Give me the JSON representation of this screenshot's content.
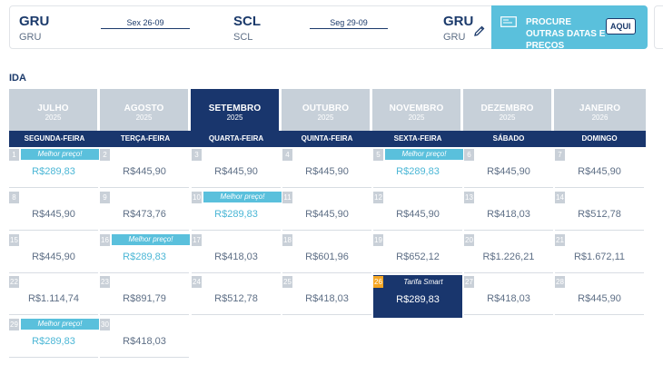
{
  "route": {
    "origin": {
      "code": "GRU",
      "name": "GRU"
    },
    "destination": {
      "code": "SCL",
      "name": "SCL"
    },
    "return_to": {
      "code": "GRU",
      "name": "GRU"
    },
    "depart_date": "Sex 26-09",
    "return_date": "Seg 29-09"
  },
  "promo": {
    "text": "PROCURE OUTRAS DATAS E PREÇOS",
    "button": "AQUI"
  },
  "section_label": "IDA",
  "months": [
    {
      "name": "JULHO",
      "year": "2025",
      "active": false
    },
    {
      "name": "AGOSTO",
      "year": "2025",
      "active": false
    },
    {
      "name": "SETEMBRO",
      "year": "2025",
      "active": true
    },
    {
      "name": "OUTUBRO",
      "year": "2025",
      "active": false
    },
    {
      "name": "NOVEMBRO",
      "year": "2025",
      "active": false
    },
    {
      "name": "DEZEMBRO",
      "year": "2025",
      "active": false
    },
    {
      "name": "JANEIRO",
      "year": "2026",
      "active": false
    }
  ],
  "weekdays": [
    "SEGUNDA-FEIRA",
    "TERÇA-FEIRA",
    "QUARTA-FEIRA",
    "QUINTA-FEIRA",
    "SEXTA-FEIRA",
    "SÁBADO",
    "DOMINGO"
  ],
  "labels": {
    "best": "Melhor preço!",
    "smart": "Tarifa Smart"
  },
  "days": [
    {
      "day": "1",
      "price": "R$289,83",
      "best": true
    },
    {
      "day": "2",
      "price": "R$445,90"
    },
    {
      "day": "3",
      "price": "R$445,90"
    },
    {
      "day": "4",
      "price": "R$445,90"
    },
    {
      "day": "5",
      "price": "R$289,83",
      "best": true
    },
    {
      "day": "6",
      "price": "R$445,90"
    },
    {
      "day": "7",
      "price": "R$445,90"
    },
    {
      "day": "8",
      "price": "R$445,90"
    },
    {
      "day": "9",
      "price": "R$473,76"
    },
    {
      "day": "10",
      "price": "R$289,83",
      "best": true
    },
    {
      "day": "11",
      "price": "R$445,90"
    },
    {
      "day": "12",
      "price": "R$445,90"
    },
    {
      "day": "13",
      "price": "R$418,03"
    },
    {
      "day": "14",
      "price": "R$512,78"
    },
    {
      "day": "15",
      "price": "R$445,90"
    },
    {
      "day": "16",
      "price": "R$289,83",
      "best": true
    },
    {
      "day": "17",
      "price": "R$418,03"
    },
    {
      "day": "18",
      "price": "R$601,96"
    },
    {
      "day": "19",
      "price": "R$652,12"
    },
    {
      "day": "20",
      "price": "R$1.226,21"
    },
    {
      "day": "21",
      "price": "R$1.672,11"
    },
    {
      "day": "22",
      "price": "R$1.114,74"
    },
    {
      "day": "23",
      "price": "R$891,79"
    },
    {
      "day": "24",
      "price": "R$512,78"
    },
    {
      "day": "25",
      "price": "R$418,03"
    },
    {
      "day": "26",
      "price": "R$289,83",
      "smart": true
    },
    {
      "day": "27",
      "price": "R$418,03"
    },
    {
      "day": "28",
      "price": "R$445,90"
    },
    {
      "day": "29",
      "price": "R$289,83",
      "best": true
    },
    {
      "day": "30",
      "price": "R$418,03"
    }
  ]
}
